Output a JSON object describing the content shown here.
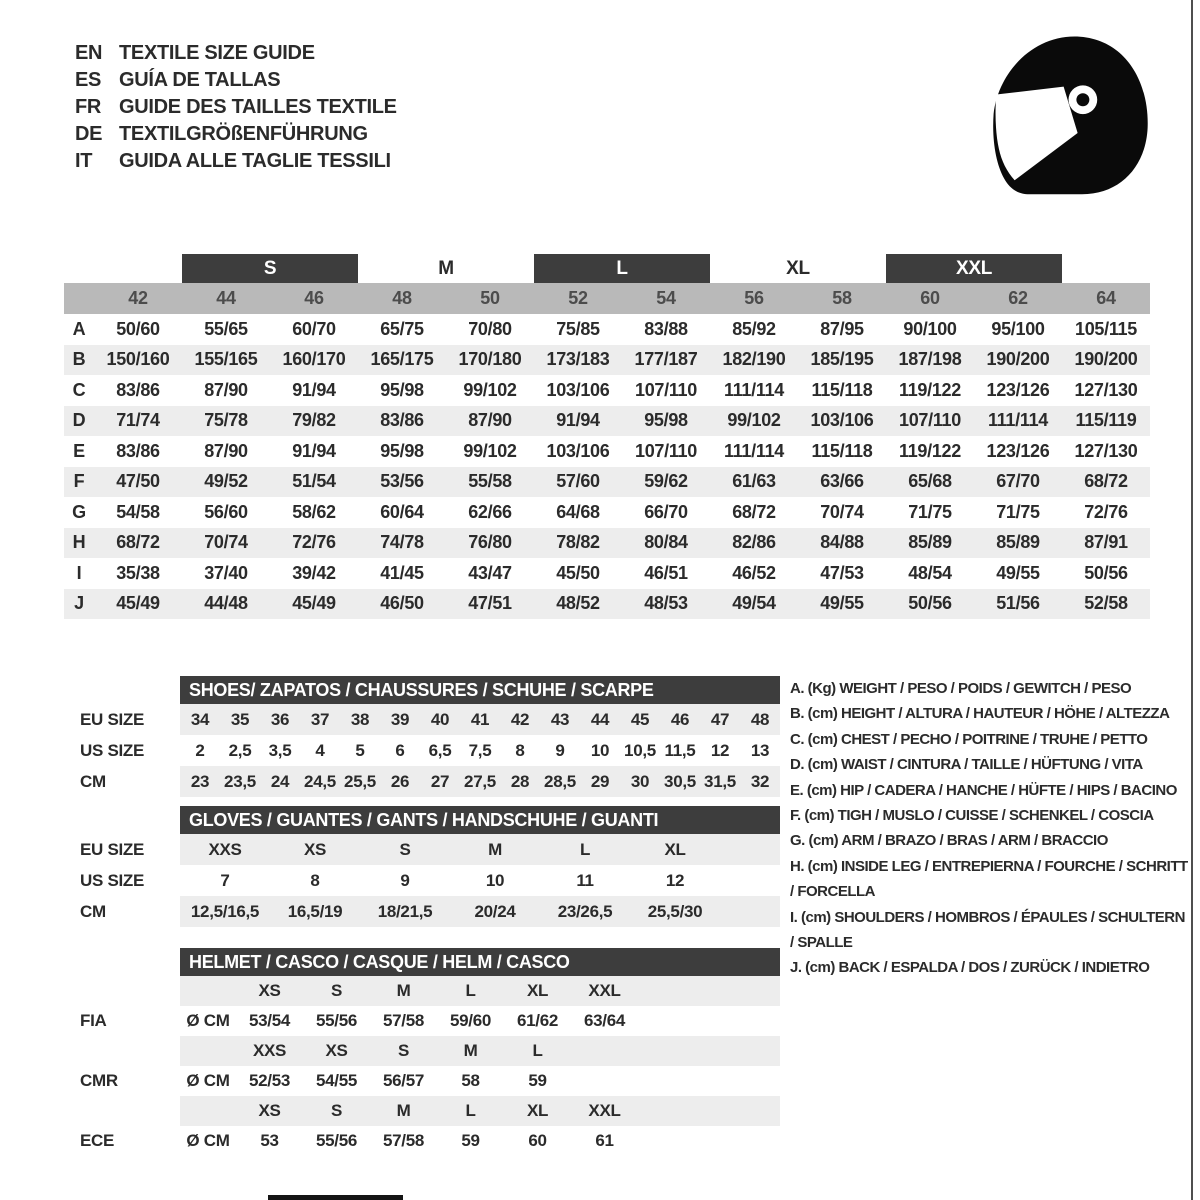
{
  "header": {
    "languages": [
      {
        "code": "EN",
        "label": "TEXTILE SIZE GUIDE"
      },
      {
        "code": "ES",
        "label": "GUÍA DE TALLAS"
      },
      {
        "code": "FR",
        "label": "GUIDE DES TAILLES TEXTILE"
      },
      {
        "code": "DE",
        "label": "TEXTILGRÖßENFÜHRUNG"
      },
      {
        "code": "IT",
        "label": "GUIDA ALLE TAGLIE TESSILI"
      }
    ],
    "helmet_icon": "full-face-helmet-icon"
  },
  "size_table": {
    "size_bands": [
      {
        "label": "S",
        "dark": true
      },
      {
        "label": "M",
        "dark": false
      },
      {
        "label": "L",
        "dark": true
      },
      {
        "label": "XL",
        "dark": false
      },
      {
        "label": "XXL",
        "dark": true
      }
    ],
    "columns": [
      "42",
      "44",
      "46",
      "48",
      "50",
      "52",
      "54",
      "56",
      "58",
      "60",
      "62",
      "64"
    ],
    "rows": [
      {
        "label": "A",
        "values": [
          "50/60",
          "55/65",
          "60/70",
          "65/75",
          "70/80",
          "75/85",
          "83/88",
          "85/92",
          "87/95",
          "90/100",
          "95/100",
          "105/115"
        ]
      },
      {
        "label": "B",
        "values": [
          "150/160",
          "155/165",
          "160/170",
          "165/175",
          "170/180",
          "173/183",
          "177/187",
          "182/190",
          "185/195",
          "187/198",
          "190/200",
          "190/200"
        ]
      },
      {
        "label": "C",
        "values": [
          "83/86",
          "87/90",
          "91/94",
          "95/98",
          "99/102",
          "103/106",
          "107/110",
          "111/114",
          "115/118",
          "119/122",
          "123/126",
          "127/130"
        ]
      },
      {
        "label": "D",
        "values": [
          "71/74",
          "75/78",
          "79/82",
          "83/86",
          "87/90",
          "91/94",
          "95/98",
          "99/102",
          "103/106",
          "107/110",
          "111/114",
          "115/119"
        ]
      },
      {
        "label": "E",
        "values": [
          "83/86",
          "87/90",
          "91/94",
          "95/98",
          "99/102",
          "103/106",
          "107/110",
          "111/114",
          "115/118",
          "119/122",
          "123/126",
          "127/130"
        ]
      },
      {
        "label": "F",
        "values": [
          "47/50",
          "49/52",
          "51/54",
          "53/56",
          "55/58",
          "57/60",
          "59/62",
          "61/63",
          "63/66",
          "65/68",
          "67/70",
          "68/72"
        ]
      },
      {
        "label": "G",
        "values": [
          "54/58",
          "56/60",
          "58/62",
          "60/64",
          "62/66",
          "64/68",
          "66/70",
          "68/72",
          "70/74",
          "71/75",
          "71/75",
          "72/76"
        ]
      },
      {
        "label": "H",
        "values": [
          "68/72",
          "70/74",
          "72/76",
          "74/78",
          "76/80",
          "78/82",
          "80/84",
          "82/86",
          "84/88",
          "85/89",
          "85/89",
          "87/91"
        ]
      },
      {
        "label": "I",
        "values": [
          "35/38",
          "37/40",
          "39/42",
          "41/45",
          "43/47",
          "45/50",
          "46/51",
          "46/52",
          "47/53",
          "48/54",
          "49/55",
          "50/56"
        ]
      },
      {
        "label": "J",
        "values": [
          "45/49",
          "44/48",
          "45/49",
          "46/50",
          "47/51",
          "48/52",
          "48/53",
          "49/54",
          "49/55",
          "50/56",
          "51/56",
          "52/58"
        ]
      }
    ]
  },
  "shoes": {
    "title": "SHOES/ ZAPATOS / CHAUSSURES / SCHUHE / SCARPE",
    "row_labels": [
      "EU SIZE",
      "US SIZE",
      "CM"
    ],
    "eu": [
      "34",
      "35",
      "36",
      "37",
      "38",
      "39",
      "40",
      "41",
      "42",
      "43",
      "44",
      "45",
      "46",
      "47",
      "48"
    ],
    "us": [
      "2",
      "2,5",
      "3,5",
      "4",
      "5",
      "6",
      "6,5",
      "7,5",
      "8",
      "9",
      "10",
      "10,5",
      "11,5",
      "12",
      "13"
    ],
    "cm": [
      "23",
      "23,5",
      "24",
      "24,5",
      "25,5",
      "26",
      "27",
      "27,5",
      "28",
      "28,5",
      "29",
      "30",
      "30,5",
      "31,5",
      "32"
    ]
  },
  "gloves": {
    "title": "GLOVES / GUANTES / GANTS / HANDSCHUHE / GUANTI",
    "row_labels": [
      "EU SIZE",
      "US SIZE",
      "CM"
    ],
    "eu": [
      "XXS",
      "XS",
      "S",
      "M",
      "L",
      "XL"
    ],
    "us": [
      "7",
      "8",
      "9",
      "10",
      "11",
      "12"
    ],
    "cm": [
      "12,5/16,5",
      "16,5/19",
      "18/21,5",
      "20/24",
      "23/26,5",
      "25,5/30"
    ]
  },
  "helmet": {
    "title": "HELMET / CASCO / CASQUE / HELM / CASCO",
    "standards": [
      {
        "label": "FIA",
        "unit": "Ø CM",
        "sizes": [
          "XS",
          "S",
          "M",
          "L",
          "XL",
          "XXL"
        ],
        "values": [
          "53/54",
          "55/56",
          "57/58",
          "59/60",
          "61/62",
          "63/64"
        ]
      },
      {
        "label": "CMR",
        "unit": "Ø CM",
        "sizes": [
          "XXS",
          "XS",
          "S",
          "M",
          "L",
          ""
        ],
        "values": [
          "52/53",
          "54/55",
          "56/57",
          "58",
          "59",
          ""
        ]
      },
      {
        "label": "ECE",
        "unit": "Ø CM",
        "sizes": [
          "XS",
          "S",
          "M",
          "L",
          "XL",
          "XXL"
        ],
        "values": [
          "53",
          "55/56",
          "57/58",
          "59",
          "60",
          "61"
        ]
      }
    ]
  },
  "legend": [
    "A. (Kg) WEIGHT / PESO / POIDS / GEWITCH / PESO",
    "B. (cm) HEIGHT / ALTURA / HAUTEUR / HÖHE / ALTEZZA",
    "C. (cm) CHEST / PECHO / POITRINE / TRUHE / PETTO",
    "D. (cm) WAIST / CINTURA / TAILLE / HÜFTUNG / VITA",
    "E. (cm) HIP / CADERA / HANCHE / HÜFTE / HIPS / BACINO",
    "F. (cm) TIGH / MUSLO / CUISSE / SCHENKEL / COSCIA",
    "G. (cm) ARM / BRAZO / BRAS / ARM / BRACCIO",
    "H. (cm) INSIDE LEG / ENTREPIERNA / FOURCHE / SCHRITT / FORCELLA",
    "I. (cm) SHOULDERS / HOMBROS / ÉPAULES / SCHULTERN / SPALLE",
    "J. (cm) BACK / ESPALDA / DOS / ZURÜCK / INDIETRO"
  ],
  "colors": {
    "dark_bar": "#3d3d3d",
    "column_header_row": "#b9b9b9",
    "row_stripe": "#ededed",
    "text": "#2b2b2b"
  }
}
